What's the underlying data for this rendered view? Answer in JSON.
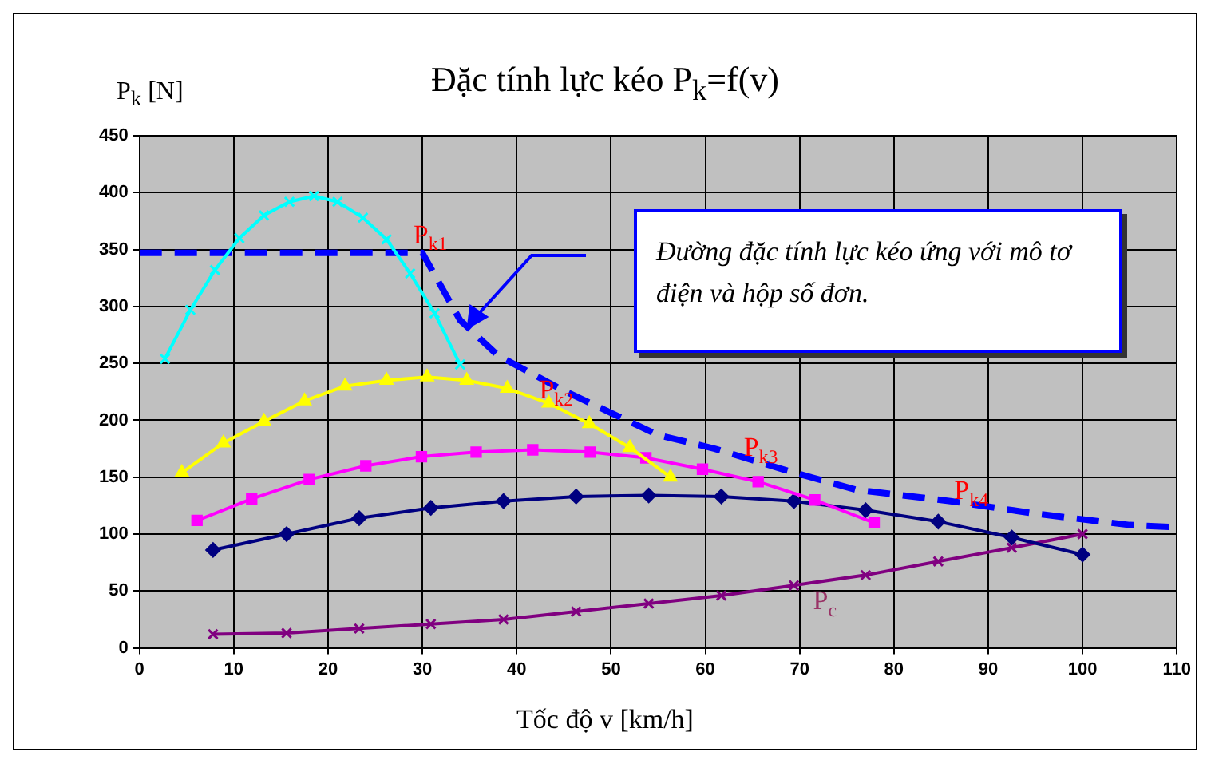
{
  "chart_data": {
    "type": "line",
    "title": "Đặc tính lực kéo P$_{k}$=f(v)",
    "xlabel": "Tốc độ v [km/h]",
    "ylabel": "P$_{k}$ [N]",
    "xlim": [
      0,
      110
    ],
    "xticks": [
      0,
      10,
      20,
      30,
      40,
      50,
      60,
      70,
      80,
      90,
      100,
      110
    ],
    "ylim": [
      0,
      450
    ],
    "yticks": [
      0,
      50,
      100,
      150,
      200,
      250,
      300,
      350,
      400,
      450
    ],
    "grid": true,
    "annotations": [
      "Đường đặc tính lực kéo ứng với mô tơ điện và hộp số đơn."
    ],
    "series": [
      {
        "name": "P$_{k1}$",
        "color": "#00ffff",
        "marker": "cross",
        "x": [
          2.7,
          5.4,
          8.0,
          10.6,
          13.2,
          15.9,
          18.5,
          21.0,
          23.7,
          26.2,
          28.7,
          31.3,
          34.0
        ],
        "values": [
          254,
          297,
          332,
          360,
          380,
          392,
          397,
          392,
          378,
          359,
          329,
          294,
          249
        ]
      },
      {
        "name": "P$_{k2}$",
        "color": "#ffff00",
        "marker": "triangle",
        "x": [
          4.5,
          8.9,
          13.2,
          17.5,
          21.8,
          26.2,
          30.5,
          34.7,
          39.0,
          43.4,
          47.7,
          52.0,
          56.3
        ],
        "values": [
          154,
          180,
          199,
          217,
          230,
          235,
          238,
          235,
          228,
          215,
          197,
          176,
          150
        ]
      },
      {
        "name": "P$_{k3}$",
        "color": "#ff00ff",
        "marker": "square",
        "x": [
          6.1,
          11.9,
          18.0,
          24.0,
          29.9,
          35.7,
          41.7,
          47.8,
          53.7,
          59.7,
          65.6,
          71.6,
          77.9
        ],
        "values": [
          112,
          131,
          148,
          160,
          168,
          172,
          174,
          172,
          167,
          157,
          146,
          130,
          110
        ]
      },
      {
        "name": "P$_{k4}$",
        "color": "#000080",
        "marker": "diamond",
        "x": [
          7.8,
          15.6,
          23.3,
          30.9,
          38.6,
          46.3,
          54.0,
          61.7,
          69.4,
          77.0,
          84.7,
          92.5,
          100.0
        ],
        "values": [
          86,
          100,
          114,
          123,
          129,
          133,
          134,
          133,
          129,
          121,
          111,
          97,
          82
        ]
      },
      {
        "name": "P$_{c}$",
        "color": "#800080",
        "marker": "cross",
        "x": [
          7.8,
          15.6,
          23.3,
          30.9,
          38.6,
          46.3,
          54.0,
          61.7,
          69.4,
          77.0,
          84.7,
          92.5,
          100.0
        ],
        "values": [
          12,
          13,
          17,
          21,
          25,
          32,
          39,
          46,
          55,
          64,
          76,
          88,
          100
        ]
      },
      {
        "color": "#0000ff",
        "marker": "none",
        "line_style": "dashed",
        "x": [
          0,
          30,
          34,
          38,
          45,
          55,
          61,
          69,
          76,
          86,
          95,
          105,
          110
        ],
        "values": [
          347,
          347,
          288,
          257,
          226,
          187,
          175,
          155,
          139,
          129,
          118,
          108,
          106
        ]
      }
    ]
  }
}
